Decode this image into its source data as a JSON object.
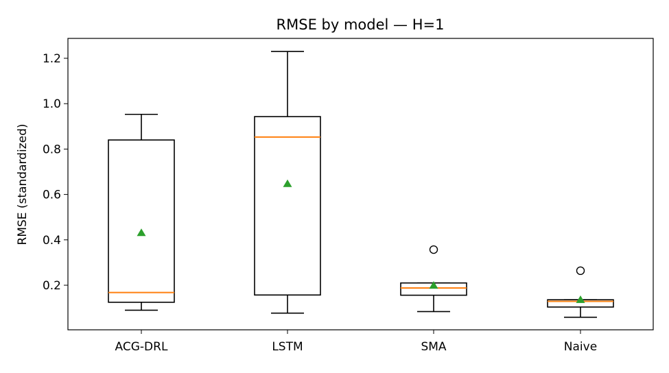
{
  "chart_data": {
    "type": "boxplot",
    "title": "RMSE by model — H=1",
    "xlabel": "",
    "ylabel": "RMSE (standardized)",
    "ylim": [
      0.0,
      1.28
    ],
    "yticks": [
      0.2,
      0.4,
      0.6,
      0.8,
      1.0,
      1.2
    ],
    "ytick_labels": [
      "0.2",
      "0.4",
      "0.6",
      "0.8",
      "1.0",
      "1.2"
    ],
    "grid": false,
    "categories": [
      "ACG-DRL",
      "LSTM",
      "SMA",
      "Naive"
    ],
    "boxes": [
      {
        "whisker_low": 0.09,
        "q1": 0.125,
        "median": 0.168,
        "q3": 0.84,
        "whisker_high": 0.953,
        "mean": 0.432,
        "outliers": []
      },
      {
        "whisker_low": 0.077,
        "q1": 0.157,
        "median": 0.853,
        "q3": 0.943,
        "whisker_high": 1.23,
        "mean": 0.648,
        "outliers": []
      },
      {
        "whisker_low": 0.084,
        "q1": 0.156,
        "median": 0.188,
        "q3": 0.21,
        "whisker_high": 0.21,
        "mean": 0.2,
        "outliers": [
          0.357
        ]
      },
      {
        "whisker_low": 0.059,
        "q1": 0.104,
        "median": 0.129,
        "q3": 0.136,
        "whisker_high": 0.136,
        "mean": 0.137,
        "outliers": [
          0.264
        ]
      }
    ],
    "colors": {
      "box": "#000000",
      "median": "#ff7f0e",
      "mean": "#2ca02c",
      "outlier": "#000000"
    }
  }
}
